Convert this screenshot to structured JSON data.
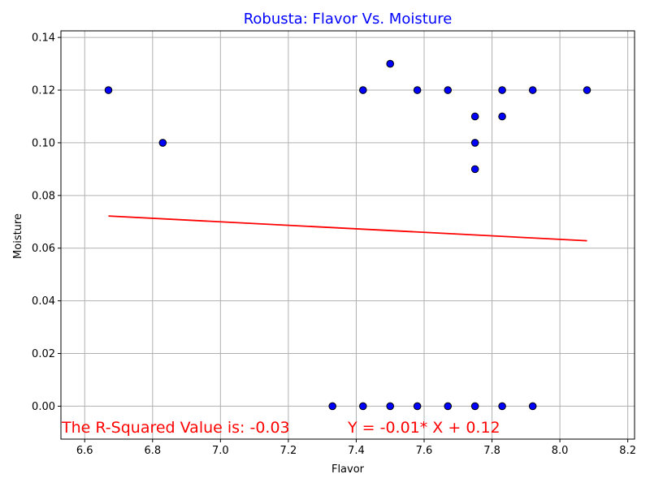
{
  "chart_data": {
    "type": "scatter",
    "title": "Robusta: Flavor Vs. Moisture",
    "xlabel": "Flavor",
    "ylabel": "Moisture",
    "xlim": [
      6.53,
      8.22
    ],
    "ylim": [
      -0.0125,
      0.1425
    ],
    "x_ticks": [
      6.6,
      6.8,
      7.0,
      7.2,
      7.4,
      7.6,
      7.8,
      8.0,
      8.2
    ],
    "x_tick_labels": [
      "6.6",
      "6.8",
      "7.0",
      "7.2",
      "7.4",
      "7.6",
      "7.8",
      "8.0",
      "8.2"
    ],
    "y_ticks": [
      0.0,
      0.02,
      0.04,
      0.06,
      0.08,
      0.1,
      0.12,
      0.14
    ],
    "y_tick_labels": [
      "0.00",
      "0.02",
      "0.04",
      "0.06",
      "0.08",
      "0.10",
      "0.12",
      "0.14"
    ],
    "grid": true,
    "points": {
      "x": [
        6.67,
        6.83,
        7.42,
        7.5,
        7.58,
        7.67,
        7.75,
        7.75,
        7.75,
        7.83,
        7.83,
        7.92,
        8.08,
        7.33,
        7.42,
        7.5,
        7.58,
        7.67,
        7.75,
        7.83,
        7.92
      ],
      "y": [
        0.12,
        0.1,
        0.12,
        0.13,
        0.12,
        0.12,
        0.11,
        0.1,
        0.09,
        0.12,
        0.11,
        0.12,
        0.12,
        0.0,
        0.0,
        0.0,
        0.0,
        0.0,
        0.0,
        0.0,
        0.0
      ],
      "color": "#0000ff",
      "edge_color": "#000000"
    },
    "fit_line": {
      "x": [
        6.67,
        8.08
      ],
      "y": [
        0.0722,
        0.0628
      ],
      "color": "#ff0000"
    },
    "annotations": {
      "r_squared": "The R-Squared Value is: -0.03",
      "equation": "Y = -0.01* X + 0.12",
      "color": "#ff0000"
    },
    "title_color": "#0000ff"
  }
}
